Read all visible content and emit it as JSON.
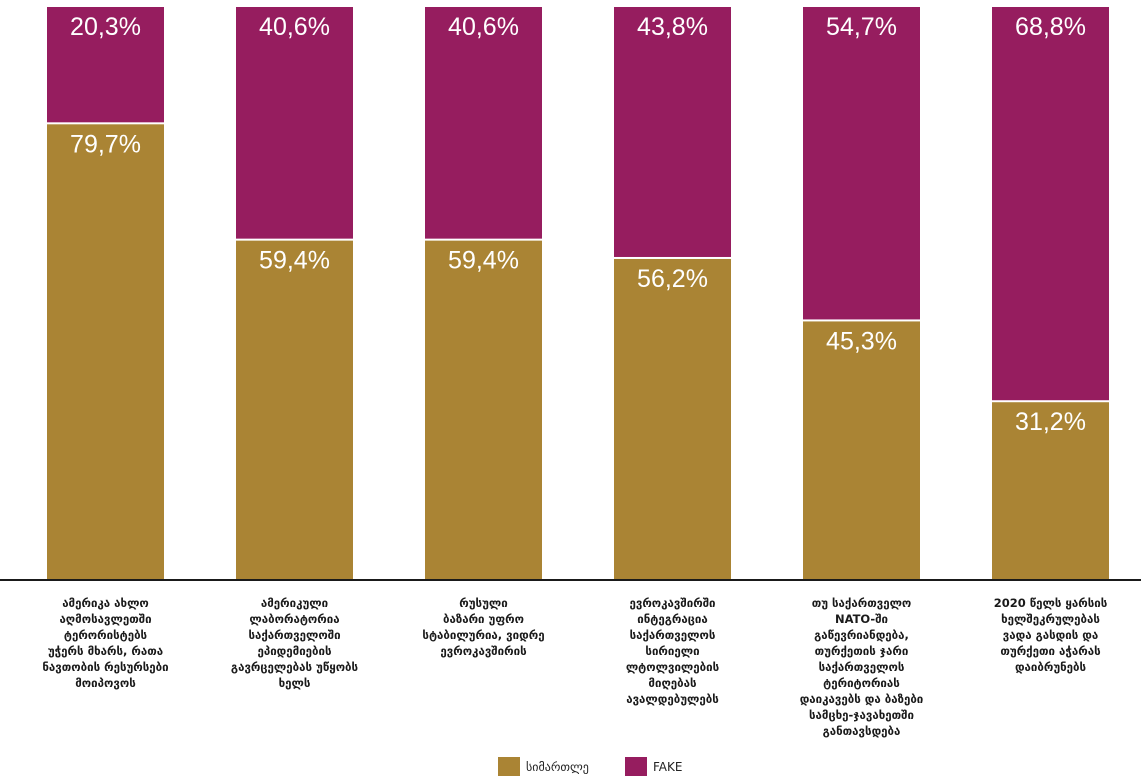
{
  "chart_data": {
    "type": "bar",
    "stacked": true,
    "categories": [
      [
        "ამერიკა ახლო",
        "აღმოსავლეთში",
        "ტერორისტებს",
        "უჭერს მხარს, რათა",
        "ნავთობის რესურსები",
        "მოიპოვოს"
      ],
      [
        "ამერიკული",
        "ლაბორატორია",
        "საქართველოში",
        "ეპიდემიების",
        "გავრცელებას უწყობს",
        "ხელს"
      ],
      [
        "რუსული",
        "ბაზარი უფრო",
        "სტაბილურია, ვიდრე",
        "ევროკავშირის"
      ],
      [
        "ევროკავშირში",
        "ინტეგრაცია",
        "საქართველოს",
        "სირიელი",
        "ლტოლვილების",
        "მიღებას",
        "ავალდებულებს"
      ],
      [
        "თუ საქართველო",
        "NATO-ში",
        "გაწევრიანდება,",
        "თურქეთის ჯარი",
        "საქართველოს",
        "ტერიტორიას",
        "დაიკავებს და ბაზები",
        "სამცხე-ჯავახეთში",
        "განთავსდება"
      ],
      [
        "2020 წელს ყარსის",
        "ხელშეკრულებას",
        "ვადა გასდის და",
        "თურქეთი აჭარას",
        "დაიბრუნებს"
      ]
    ],
    "series": [
      {
        "name": "სიმართლე",
        "color": "#aa8434",
        "values": [
          79.7,
          59.4,
          59.4,
          56.2,
          45.3,
          31.2
        ],
        "labels": [
          "79,7%",
          "59,4%",
          "59,4%",
          "56,2%",
          "45,3%",
          "31,2%"
        ]
      },
      {
        "name": "FAKE",
        "color": "#961d5f",
        "values": [
          20.3,
          40.6,
          40.6,
          43.8,
          54.7,
          68.8
        ],
        "labels": [
          "20,3%",
          "40,6%",
          "40,6%",
          "43,8%",
          "54,7%",
          "68,8%"
        ]
      }
    ],
    "ylim": [
      0,
      100
    ],
    "legend_position": "bottom-center",
    "grid": false
  }
}
